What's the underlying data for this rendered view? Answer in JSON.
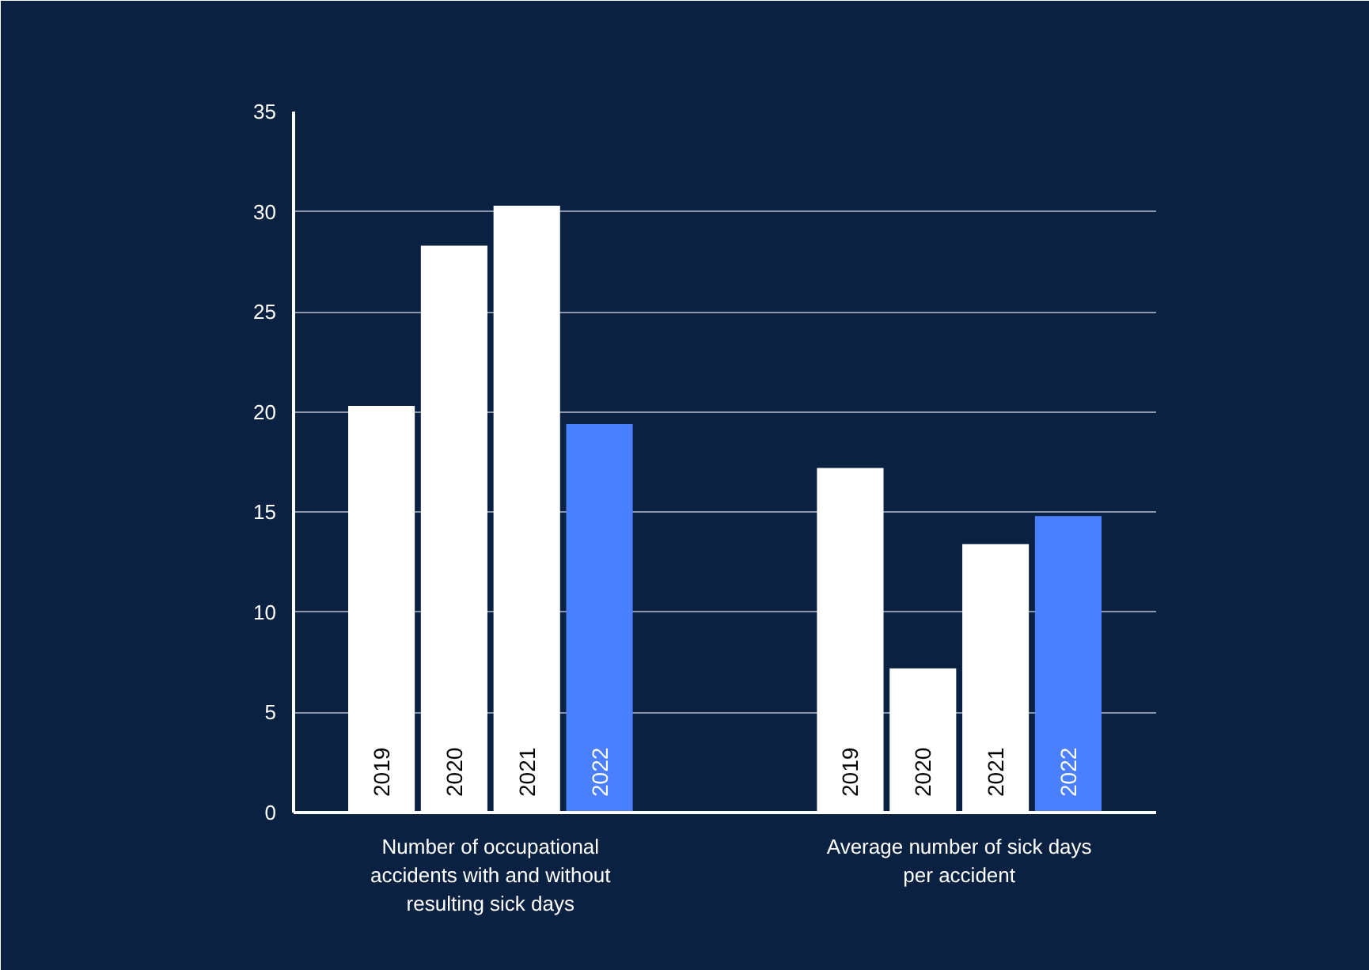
{
  "chart_data": {
    "type": "bar",
    "categories": [
      "Number of occupational accidents with and without resulting sick days",
      "Average number of sick days per accident"
    ],
    "series": [
      {
        "name": "2019",
        "color": "#ffffff",
        "values": [
          20.3,
          17.2
        ]
      },
      {
        "name": "2020",
        "color": "#ffffff",
        "values": [
          28.3,
          7.2
        ]
      },
      {
        "name": "2021",
        "color": "#ffffff",
        "values": [
          30.3,
          13.4
        ]
      },
      {
        "name": "2022",
        "color": "#4a80ff",
        "values": [
          19.4,
          14.8
        ]
      }
    ],
    "ylim": [
      0,
      35
    ],
    "yticks": [
      0,
      5,
      10,
      15,
      20,
      25,
      30,
      35
    ],
    "grid": "y"
  }
}
